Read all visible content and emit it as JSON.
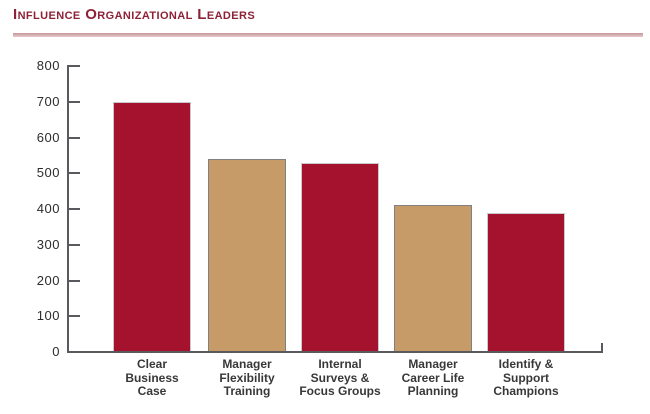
{
  "header": {
    "title": "Influence Organizational Leaders"
  },
  "chart_data": {
    "type": "bar",
    "title": "Influence Organizational Leaders",
    "categories": [
      "Clear Business Case",
      "Manager Flexibility Training",
      "Internal Surveys & Focus Groups",
      "Manager Career Life Planning",
      "Identify & Support Champions"
    ],
    "category_lines": [
      [
        "Clear",
        "Business",
        "Case"
      ],
      [
        "Manager",
        "Flexibility",
        "Training"
      ],
      [
        "Internal",
        "Surveys &",
        "Focus Groups"
      ],
      [
        "Manager",
        "Career Life",
        "Planning"
      ],
      [
        "Identify &",
        "Support",
        "Champions"
      ]
    ],
    "values": [
      700,
      540,
      530,
      410,
      390
    ],
    "bar_colors": [
      "#A5122E",
      "#C79B68",
      "#A5122E",
      "#C79B68",
      "#A5122E"
    ],
    "bar_border_colors": [
      "#C9C9CF",
      "#808080",
      "#C9C9CF",
      "#808080",
      "#C9C9CF"
    ],
    "xlabel": "",
    "ylabel": "",
    "ylim": [
      0,
      800
    ],
    "yticks": [
      0,
      100,
      200,
      300,
      400,
      500,
      600,
      700,
      800
    ],
    "grid": false,
    "legend": false
  },
  "theme": {
    "background": "#FFFFFF",
    "title_color": "#8E2137",
    "rule_color_top": "#C7959B",
    "rule_color_bottom": "#E5C9CB",
    "axis_color": "#5A5A5E",
    "tick_label_color": "#2D2D2D",
    "category_label_color": "#383838"
  }
}
